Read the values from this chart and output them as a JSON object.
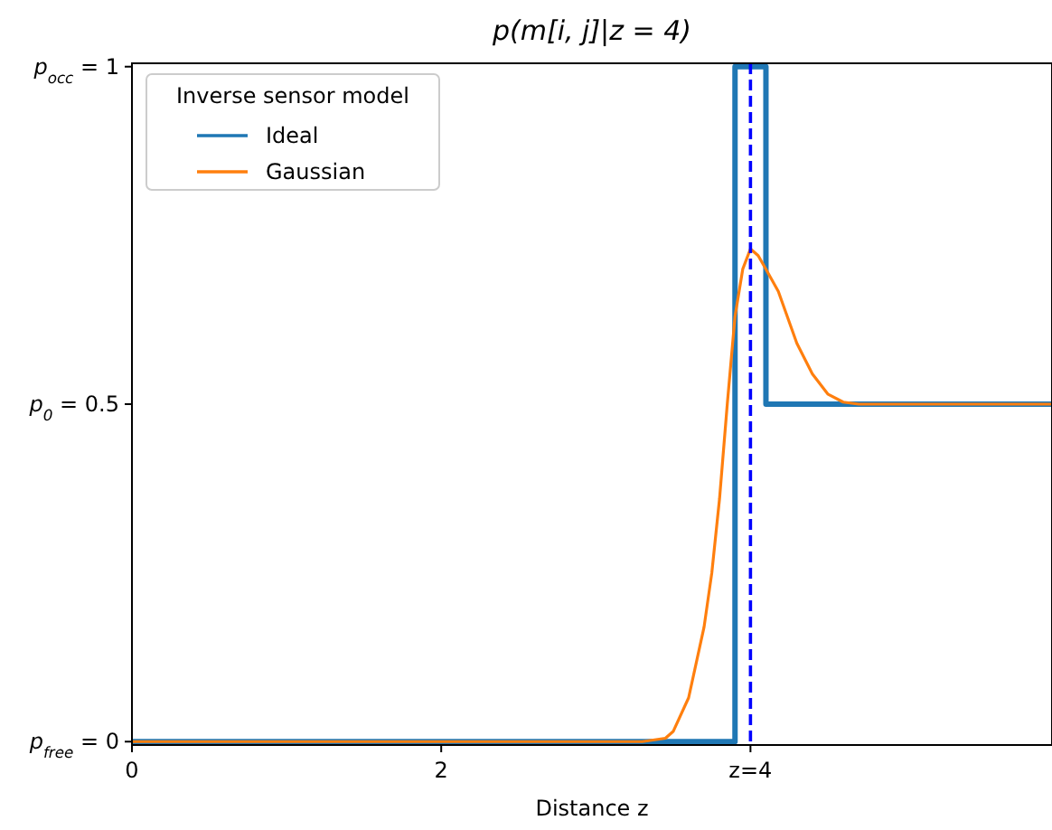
{
  "chart_data": {
    "type": "line",
    "title": "p(m[i, j]|z = 4)",
    "xlabel": "Distance z",
    "legend_title": "Inverse sensor model",
    "legend": "top left",
    "grid": false,
    "xlim": [
      0,
      5.95
    ],
    "xticks": [
      0,
      2,
      {
        "value": 4,
        "label": "z=4"
      }
    ],
    "ylim": [
      -0.005,
      1.005
    ],
    "yticks": [
      {
        "value": 0,
        "label": "p$_{free}$ = 0"
      },
      {
        "value": 0.5,
        "label": "p$_{0}$ = 0.5"
      },
      {
        "value": 1,
        "label": "p$_{occ}$ = 1"
      }
    ],
    "ref_lines": [
      {
        "axis": "x",
        "value": 4,
        "color": "#0000ff",
        "line_style": "dashed"
      }
    ],
    "series": [
      {
        "name": "Ideal",
        "type": "step",
        "color": "#1f77b4",
        "x": [
          0,
          3.9,
          4.1,
          5.95
        ],
        "values": [
          0,
          1,
          0.5,
          0.5
        ]
      },
      {
        "name": "Gaussian",
        "color": "#ff7f0e",
        "x": [
          0,
          3.3,
          3.45,
          3.5,
          3.6,
          3.7,
          3.75,
          3.8,
          3.85,
          3.9,
          3.95,
          4.0,
          4.05,
          4.1,
          4.18,
          4.3,
          4.4,
          4.5,
          4.6,
          4.7,
          5.95
        ],
        "values": [
          0,
          0,
          0.005,
          0.015,
          0.065,
          0.17,
          0.25,
          0.36,
          0.5,
          0.63,
          0.7,
          0.73,
          0.72,
          0.7,
          0.667,
          0.59,
          0.545,
          0.515,
          0.503,
          0.5,
          0.5
        ]
      }
    ]
  }
}
